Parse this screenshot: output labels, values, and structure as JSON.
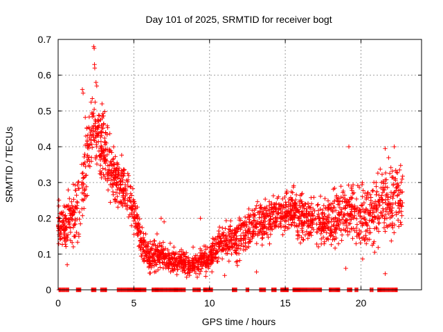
{
  "chart_data": {
    "type": "scatter",
    "title": "Day 101 of 2025, SRMTID for receiver bogt",
    "xlabel": "GPS time / hours",
    "ylabel": "SRMTID / TECUs",
    "xlim": [
      0,
      24
    ],
    "ylim": [
      0,
      0.7
    ],
    "xticks": [
      0,
      5,
      10,
      15,
      20
    ],
    "xtick_labels": [
      "0",
      "5",
      "10",
      "15",
      "20"
    ],
    "yticks": [
      0,
      0.1,
      0.2,
      0.3,
      0.4,
      0.5,
      0.6,
      0.7
    ],
    "ytick_labels": [
      "0",
      "0.1",
      "0.2",
      "0.3",
      "0.4",
      "0.5",
      "0.6",
      "0.7"
    ],
    "grid": true,
    "marker": "+",
    "color": "#ff0000",
    "series": [
      {
        "name": "SRMTID",
        "trend": [
          [
            0.0,
            0.19
          ],
          [
            0.5,
            0.17
          ],
          [
            1.0,
            0.22
          ],
          [
            1.5,
            0.24
          ],
          [
            2.0,
            0.4
          ],
          [
            2.3,
            0.47
          ],
          [
            2.6,
            0.45
          ],
          [
            3.0,
            0.4
          ],
          [
            3.5,
            0.33
          ],
          [
            4.0,
            0.3
          ],
          [
            4.5,
            0.28
          ],
          [
            5.0,
            0.23
          ],
          [
            5.5,
            0.13
          ],
          [
            6.0,
            0.09
          ],
          [
            6.5,
            0.1
          ],
          [
            7.0,
            0.09
          ],
          [
            7.5,
            0.08
          ],
          [
            8.0,
            0.08
          ],
          [
            8.5,
            0.07
          ],
          [
            9.0,
            0.07
          ],
          [
            9.5,
            0.08
          ],
          [
            10.0,
            0.09
          ],
          [
            10.5,
            0.12
          ],
          [
            11.0,
            0.14
          ],
          [
            11.5,
            0.13
          ],
          [
            12.0,
            0.14
          ],
          [
            12.5,
            0.16
          ],
          [
            13.0,
            0.18
          ],
          [
            13.5,
            0.19
          ],
          [
            14.0,
            0.2
          ],
          [
            14.5,
            0.21
          ],
          [
            15.0,
            0.21
          ],
          [
            15.5,
            0.22
          ],
          [
            16.0,
            0.21
          ],
          [
            16.5,
            0.19
          ],
          [
            17.0,
            0.19
          ],
          [
            17.5,
            0.18
          ],
          [
            18.0,
            0.19
          ],
          [
            18.5,
            0.21
          ],
          [
            19.0,
            0.22
          ],
          [
            19.5,
            0.21
          ],
          [
            20.0,
            0.2
          ],
          [
            20.5,
            0.2
          ],
          [
            21.0,
            0.22
          ],
          [
            21.5,
            0.24
          ],
          [
            22.0,
            0.25
          ],
          [
            22.7,
            0.27
          ]
        ],
        "spread": [
          [
            0.0,
            0.05
          ],
          [
            2.0,
            0.09
          ],
          [
            3.0,
            0.08
          ],
          [
            4.5,
            0.05
          ],
          [
            5.5,
            0.04
          ],
          [
            8.0,
            0.03
          ],
          [
            10.0,
            0.03
          ],
          [
            12.0,
            0.05
          ],
          [
            16.0,
            0.05
          ],
          [
            19.0,
            0.07
          ],
          [
            22.7,
            0.08
          ]
        ],
        "data_range_hours": [
          0.0,
          22.75
        ],
        "n_points": 2300,
        "outliers": [
          [
            2.35,
            0.68
          ],
          [
            2.38,
            0.675
          ],
          [
            2.4,
            0.63
          ],
          [
            2.42,
            0.62
          ],
          [
            2.5,
            0.58
          ],
          [
            2.55,
            0.57
          ],
          [
            1.6,
            0.56
          ],
          [
            1.65,
            0.55
          ],
          [
            2.9,
            0.52
          ],
          [
            19.2,
            0.4
          ],
          [
            22.2,
            0.4
          ],
          [
            21.6,
            0.395
          ],
          [
            21.0,
            0.3
          ],
          [
            9.4,
            0.2
          ],
          [
            16.6,
            0.23
          ],
          [
            0.6,
            0.07
          ],
          [
            21.6,
            0.045
          ],
          [
            6.8,
            0.2
          ],
          [
            7.0,
            0.19
          ],
          [
            19.0,
            0.06
          ],
          [
            13.1,
            0.05
          ],
          [
            11.0,
            0.04
          ],
          [
            1.0,
            0.12
          ],
          [
            18.3,
            0.17
          ],
          [
            4.2,
            0.24
          ]
        ],
        "zero_line_hours": [
          [
            0.05,
            0.7
          ],
          [
            1.2,
            1.5
          ],
          [
            2.2,
            2.5
          ],
          [
            2.8,
            3.2
          ],
          [
            3.9,
            5.8
          ],
          [
            6.2,
            8.4
          ],
          [
            8.9,
            9.4
          ],
          [
            9.6,
            10.2
          ],
          [
            11.5,
            11.8
          ],
          [
            12.4,
            12.6
          ],
          [
            13.3,
            13.7
          ],
          [
            14.1,
            14.4
          ],
          [
            14.7,
            15.2
          ],
          [
            15.5,
            17.4
          ],
          [
            17.9,
            18.6
          ],
          [
            19.1,
            19.4
          ],
          [
            19.6,
            19.8
          ],
          [
            20.6,
            20.8
          ],
          [
            21.1,
            22.4
          ]
        ]
      }
    ]
  }
}
